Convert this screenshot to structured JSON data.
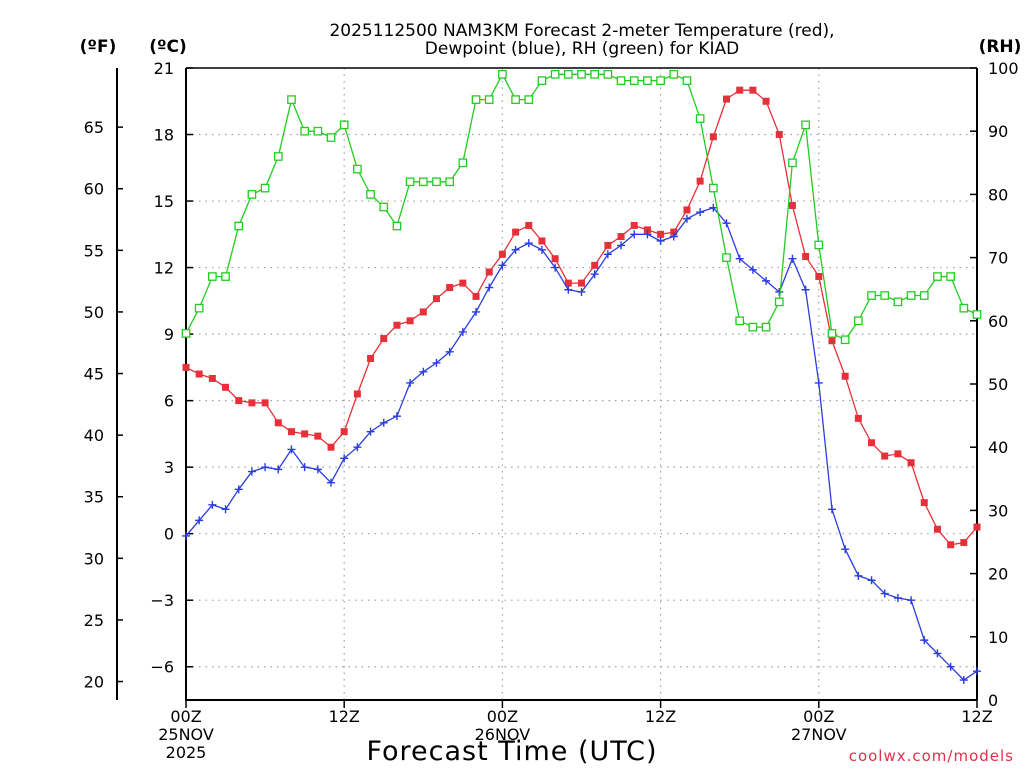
{
  "chart_data": {
    "type": "line",
    "title_line1": "2025112500 NAM3KM Forecast 2-meter Temperature (red),",
    "title_line2": "Dewpoint (blue), RH (green) for KIAD",
    "xlabel": "Forecast Time (UTC)",
    "credit": "coolwx.com/models",
    "units": {
      "fahrenheit": "(ºF)",
      "celsius": "(ºC)",
      "rh": "(RH)"
    },
    "axes": {
      "celsius": {
        "range": [
          -7.5,
          21
        ],
        "ticks": [
          21,
          18,
          15,
          12,
          9,
          6,
          3,
          0,
          -3,
          -6
        ],
        "tick_labels": [
          "21",
          "18",
          "15",
          "12",
          "9",
          "6",
          "3",
          "0",
          "−3",
          "−6"
        ]
      },
      "fahrenheit": {
        "ticks": [
          65,
          60,
          55,
          50,
          45,
          40,
          35,
          30,
          25,
          20
        ],
        "tick_labels": [
          "65",
          "60",
          "55",
          "50",
          "45",
          "40",
          "35",
          "30",
          "25",
          "20"
        ]
      },
      "rh": {
        "range": [
          0,
          100
        ],
        "ticks": [
          100,
          90,
          80,
          70,
          60,
          50,
          40,
          30,
          20,
          10,
          0
        ],
        "tick_labels": [
          "100",
          "90",
          "80",
          "70",
          "60",
          "50",
          "40",
          "30",
          "20",
          "10",
          "0"
        ]
      },
      "x": {
        "range_hours": [
          0,
          60
        ],
        "ticks": [
          {
            "hour": 0,
            "lines": [
              "00Z",
              "25NOV",
              "2025"
            ]
          },
          {
            "hour": 12,
            "lines": [
              "12Z"
            ]
          },
          {
            "hour": 24,
            "lines": [
              "00Z",
              "26NOV"
            ]
          },
          {
            "hour": 36,
            "lines": [
              "12Z"
            ]
          },
          {
            "hour": 48,
            "lines": [
              "00Z",
              "27NOV"
            ]
          },
          {
            "hour": 60,
            "lines": [
              "12Z"
            ]
          }
        ]
      }
    },
    "grid": true,
    "hours": [
      0,
      1,
      2,
      3,
      4,
      5,
      6,
      7,
      8,
      9,
      10,
      11,
      12,
      13,
      14,
      15,
      16,
      17,
      18,
      19,
      20,
      21,
      22,
      23,
      24,
      25,
      26,
      27,
      28,
      29,
      30,
      31,
      32,
      33,
      34,
      35,
      36,
      37,
      38,
      39,
      40,
      41,
      42,
      43,
      44,
      45,
      46,
      47,
      48,
      49,
      50,
      51,
      52,
      53,
      54,
      55,
      56,
      57,
      58,
      59,
      60
    ],
    "series": [
      {
        "name": "Temperature",
        "color": "#e8303a",
        "marker": "filled-square",
        "axis": "celsius",
        "values": [
          7.5,
          7.2,
          7.0,
          6.6,
          6.0,
          5.9,
          5.9,
          5.0,
          4.6,
          4.5,
          4.4,
          3.9,
          4.6,
          6.3,
          7.9,
          8.8,
          9.4,
          9.6,
          10.0,
          10.6,
          11.1,
          11.3,
          10.7,
          11.8,
          12.6,
          13.6,
          13.9,
          13.2,
          12.4,
          11.3,
          11.3,
          12.1,
          13.0,
          13.4,
          13.9,
          13.7,
          13.5,
          13.6,
          14.6,
          15.9,
          17.9,
          19.6,
          20.0,
          20.0,
          19.5,
          18.0,
          14.8,
          12.5,
          11.6,
          8.7,
          7.1,
          5.2,
          4.1,
          3.5,
          3.6,
          3.2,
          1.4,
          0.2,
          -0.5,
          -0.4,
          0.3
        ]
      },
      {
        "name": "Dewpoint",
        "color": "#2a3de0",
        "marker": "plus",
        "axis": "celsius",
        "values": [
          -0.1,
          0.6,
          1.3,
          1.1,
          2.0,
          2.8,
          3.0,
          2.9,
          3.8,
          3.0,
          2.9,
          2.3,
          3.4,
          3.9,
          4.6,
          5.0,
          5.3,
          6.8,
          7.3,
          7.7,
          8.2,
          9.1,
          10.0,
          11.1,
          12.1,
          12.8,
          13.1,
          12.8,
          12.0,
          11.0,
          10.9,
          11.7,
          12.6,
          13.0,
          13.5,
          13.5,
          13.2,
          13.4,
          14.2,
          14.5,
          14.7,
          14.0,
          12.4,
          11.9,
          11.4,
          10.9,
          12.4,
          11.0,
          6.8,
          1.1,
          -0.7,
          -1.9,
          -2.1,
          -2.7,
          -2.9,
          -3.0,
          -4.8,
          -5.4,
          -6.0,
          -6.6,
          -6.2
        ]
      },
      {
        "name": "RH",
        "color": "#22cc22",
        "marker": "open-square",
        "axis": "rh",
        "values": [
          58,
          62,
          67,
          67,
          75,
          80,
          81,
          86,
          95,
          90,
          90,
          89,
          91,
          84,
          80,
          78,
          75,
          82,
          82,
          82,
          82,
          85,
          95,
          95,
          99,
          95,
          95,
          98,
          99,
          99,
          99,
          99,
          99,
          98,
          98,
          98,
          98,
          99,
          98,
          92,
          81,
          70,
          60,
          59,
          59,
          63,
          85,
          91,
          72,
          58,
          57,
          60,
          64,
          64,
          63,
          64,
          64,
          67,
          67,
          62,
          61
        ]
      }
    ]
  }
}
